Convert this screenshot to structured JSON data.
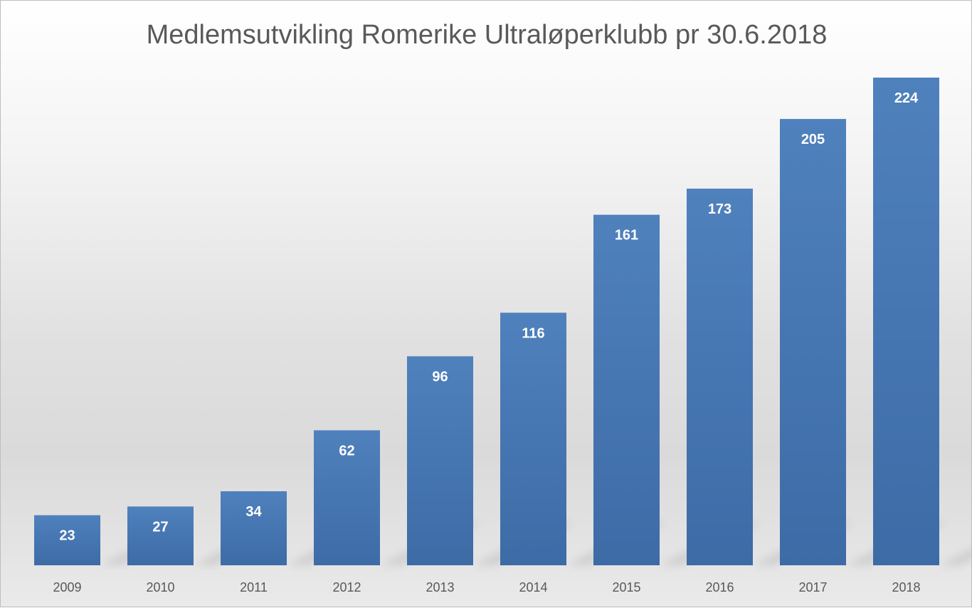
{
  "chart_data": {
    "type": "bar",
    "title": "Medlemsutvikling Romerike Ultraløperklubb pr 30.6.2018",
    "categories": [
      "2009",
      "2010",
      "2011",
      "2012",
      "2013",
      "2014",
      "2015",
      "2016",
      "2017",
      "2018"
    ],
    "values": [
      23,
      27,
      34,
      62,
      96,
      116,
      161,
      173,
      205,
      224
    ],
    "data_labels": [
      "23",
      "27",
      "34",
      "62",
      "96",
      "116",
      "161",
      "173",
      "205",
      "224"
    ],
    "xlabel": "",
    "ylabel": "",
    "ylim": [
      0,
      224
    ],
    "grid": false,
    "legend": "none",
    "bar_color": "#4f81bd",
    "bar_color_dark": "#3d6ba6",
    "label_color": "#ffffff",
    "title_color": "#595959"
  }
}
